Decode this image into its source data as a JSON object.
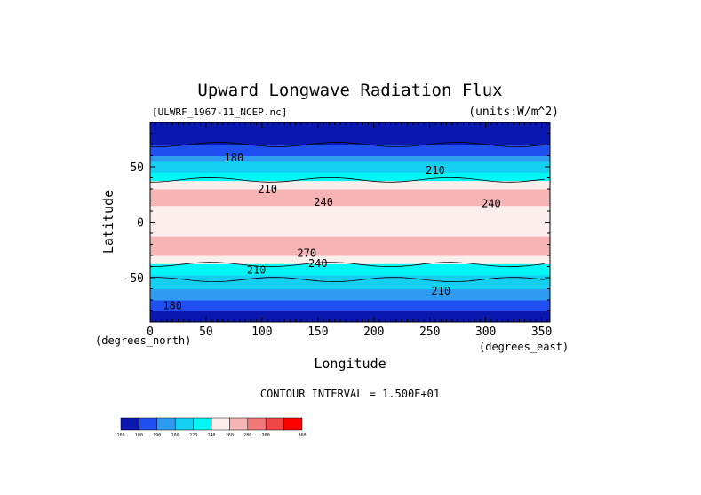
{
  "chart_data": {
    "type": "heatmap",
    "title": "Upward Longwave Radiation Flux",
    "subtitle_left": "[ULWRF_1967-11_NCEP.nc]",
    "subtitle_right": "(units:W/m^2)",
    "xlabel": "Longitude",
    "ylabel": "Latitude",
    "x_unit_label": "(degrees_east)",
    "y_unit_label": "(degrees_north)",
    "xlim": [
      0,
      357.5
    ],
    "ylim": [
      -90,
      90
    ],
    "x_ticks": [
      0,
      50,
      100,
      150,
      200,
      250,
      300,
      350
    ],
    "y_ticks": [
      -50,
      0,
      50
    ],
    "contour_interval_text": "CONTOUR INTERVAL = 1.500E+01",
    "contour_labels": [
      {
        "text": "180",
        "lon": 75,
        "lat": 58
      },
      {
        "text": "210",
        "lon": 255,
        "lat": 47
      },
      {
        "text": "210",
        "lon": 105,
        "lat": 30
      },
      {
        "text": "240",
        "lon": 155,
        "lat": 18
      },
      {
        "text": "240",
        "lon": 305,
        "lat": 17
      },
      {
        "text": "270",
        "lon": 140,
        "lat": -28
      },
      {
        "text": "240",
        "lon": 150,
        "lat": -37
      },
      {
        "text": "210",
        "lon": 95,
        "lat": -43
      },
      {
        "text": "210",
        "lon": 260,
        "lat": -62
      },
      {
        "text": "180",
        "lon": 20,
        "lat": -75
      }
    ],
    "colorbar": {
      "levels": [
        "160",
        "180",
        "190",
        "200",
        "220",
        "240",
        "260",
        "280",
        "300",
        "360"
      ],
      "colors": [
        "#0a18b0",
        "#1f4ff0",
        "#2f9bf0",
        "#14cfef",
        "#00f7f5",
        "#fdeeee",
        "#f7b4b4",
        "#f07878",
        "#f04646",
        "#ff0000"
      ]
    },
    "zonal_mean_profile": [
      {
        "lat": 90,
        "value": 165
      },
      {
        "lat": 75,
        "value": 175
      },
      {
        "lat": 60,
        "value": 190
      },
      {
        "lat": 50,
        "value": 210
      },
      {
        "lat": 40,
        "value": 235
      },
      {
        "lat": 30,
        "value": 262
      },
      {
        "lat": 20,
        "value": 268
      },
      {
        "lat": 10,
        "value": 248
      },
      {
        "lat": 0,
        "value": 240
      },
      {
        "lat": -10,
        "value": 255
      },
      {
        "lat": -20,
        "value": 270
      },
      {
        "lat": -30,
        "value": 262
      },
      {
        "lat": -40,
        "value": 235
      },
      {
        "lat": -50,
        "value": 212
      },
      {
        "lat": -60,
        "value": 200
      },
      {
        "lat": -70,
        "value": 190
      },
      {
        "lat": -80,
        "value": 180
      },
      {
        "lat": -90,
        "value": 165
      }
    ]
  }
}
